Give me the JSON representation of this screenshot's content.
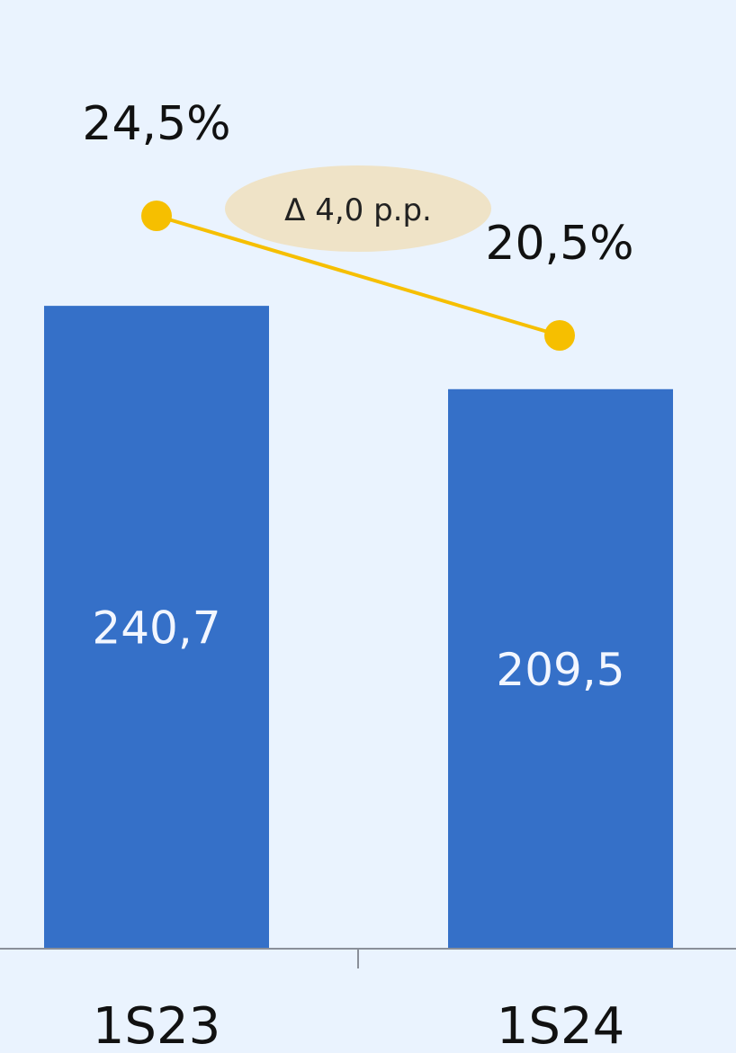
{
  "colors": {
    "background": "#EAF3FE",
    "bar": "#3570C8",
    "line": "#F6BF00",
    "axis": "#8A8F99",
    "bubble": "#EFE3C7"
  },
  "chart_data": {
    "type": "bar",
    "categories": [
      "1S23",
      "1S24"
    ],
    "values": [
      240.7,
      209.5
    ],
    "value_labels": [
      "240,7",
      "209,5"
    ],
    "line_series": {
      "values": [
        24.5,
        20.5
      ],
      "labels": [
        "24,5%",
        "20,5%"
      ]
    },
    "annotation": "Δ 4,0 p.p.",
    "title": "",
    "xlabel": "",
    "ylabel": "",
    "ylim": [
      0,
      300
    ],
    "grid": false,
    "legend": "none"
  }
}
